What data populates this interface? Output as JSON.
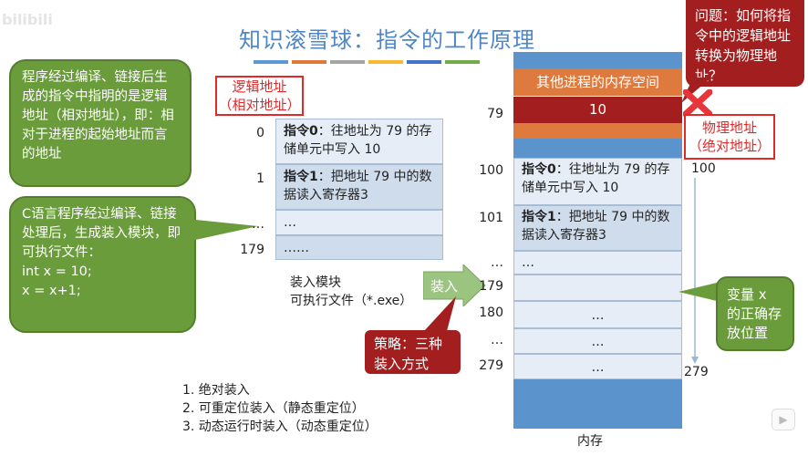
{
  "watermark": "bilibili",
  "title": "知识滚雪球：指令的工作原理",
  "title_bar_colors": [
    "#5b9bd5",
    "#e0783a",
    "#a5a5a5",
    "#f5b82e",
    "#4472c4",
    "#70ad47"
  ],
  "logical_address_label": [
    "逻辑地址",
    "（相对地址）"
  ],
  "physical_address_label": [
    "物理地址",
    "（绝对地址）"
  ],
  "callout_logical": "程序经过编译、链接后生成的指令中指明的是逻辑地址（相对地址），即：相对于进程的起始地址而言的地址",
  "callout_c_program": {
    "text": "C语言程序经过编译、链接处理后，生成装入模块，即可执行文件：",
    "code": [
      "int x = 10;",
      "x = x+1;"
    ]
  },
  "question": "问题：如何将指令中的逻辑地址转换为物理地址？",
  "callout_variable": "变量 x 的正确存放位置",
  "strategy": "策略：三种装入方式",
  "load_arrow": "装入",
  "module": {
    "rows": [
      {
        "addr": "0",
        "bold": "指令0",
        "text": "：往地址为 79 的存储单元中写入 10"
      },
      {
        "addr": "1",
        "bold": "指令1",
        "text": "：把地址 79 中的数据读入寄存器3"
      },
      {
        "addr": "…",
        "bold": "",
        "text": "…"
      },
      {
        "addr": "179",
        "bold": "",
        "text": "……"
      }
    ],
    "caption": [
      "装入模块",
      "可执行文件（*.exe）"
    ]
  },
  "memory": {
    "other_process": "其他进程的内存空间",
    "value_at_79": "10",
    "addr_79": "79",
    "rows": [
      {
        "addr": "100",
        "bold": "指令0",
        "text": "：往地址为 79 的存储单元中写入 10"
      },
      {
        "addr": "101",
        "bold": "指令1",
        "text": "：把地址 79 中的数据读入寄存器3"
      },
      {
        "addr": "…",
        "text": "…"
      },
      {
        "addr": "179",
        "text": ""
      },
      {
        "addr": "180",
        "text": "…"
      },
      {
        "addr": "…",
        "text": "…"
      },
      {
        "addr": "279",
        "text": "…"
      }
    ],
    "right_start": "100",
    "right_end": "279",
    "caption": "内存"
  },
  "methods": [
    "1.  绝对装入",
    "2.  可重定位装入（静态重定位）",
    "3.  动态运行时装入（动态重定位）"
  ]
}
